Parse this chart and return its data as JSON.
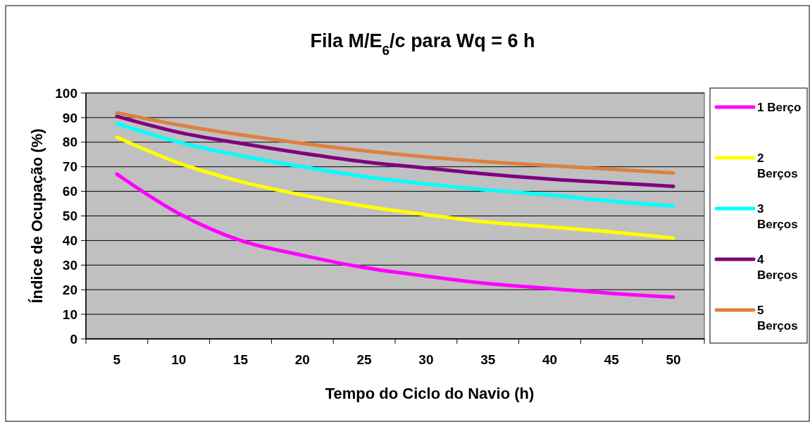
{
  "chart_data": {
    "type": "line",
    "title": "Fila M/E$_{6}$/c para Wq = 6 h",
    "xlabel": "Tempo do Ciclo do Navio (h)",
    "ylabel": "Índice de Ocupação (%)",
    "categories": [
      "5",
      "10",
      "15",
      "20",
      "25",
      "30",
      "35",
      "40",
      "45",
      "50"
    ],
    "series": [
      {
        "name": "1 Berço",
        "color": "#ff00ff",
        "values": [
          67,
          51,
          40,
          34,
          29,
          25.5,
          22.5,
          20.5,
          18.5,
          17
        ]
      },
      {
        "name": "2 Berços",
        "color": "#ffff00",
        "values": [
          82,
          71.5,
          64,
          58.5,
          54,
          50.5,
          47.5,
          45.5,
          43.5,
          41
        ]
      },
      {
        "name": "3 Berços",
        "color": "#00ffff",
        "values": [
          87.5,
          80,
          74.5,
          70,
          66,
          63,
          60.5,
          58.5,
          56,
          54
        ]
      },
      {
        "name": "4 Berços",
        "color": "#800080",
        "values": [
          90.5,
          84,
          79.5,
          75.5,
          72,
          69.5,
          67,
          65,
          63.5,
          62
        ]
      },
      {
        "name": "5 Berços",
        "color": "#dd8040",
        "values": [
          92,
          87,
          83,
          79.5,
          76.5,
          74,
          72,
          70.5,
          69,
          67.5
        ]
      }
    ],
    "ylim": [
      0,
      100
    ],
    "yticks": [
      0,
      10,
      20,
      30,
      40,
      50,
      60,
      70,
      80,
      90,
      100
    ],
    "grid": "y",
    "legend": "right",
    "marker": "none",
    "line_style": "solid"
  }
}
